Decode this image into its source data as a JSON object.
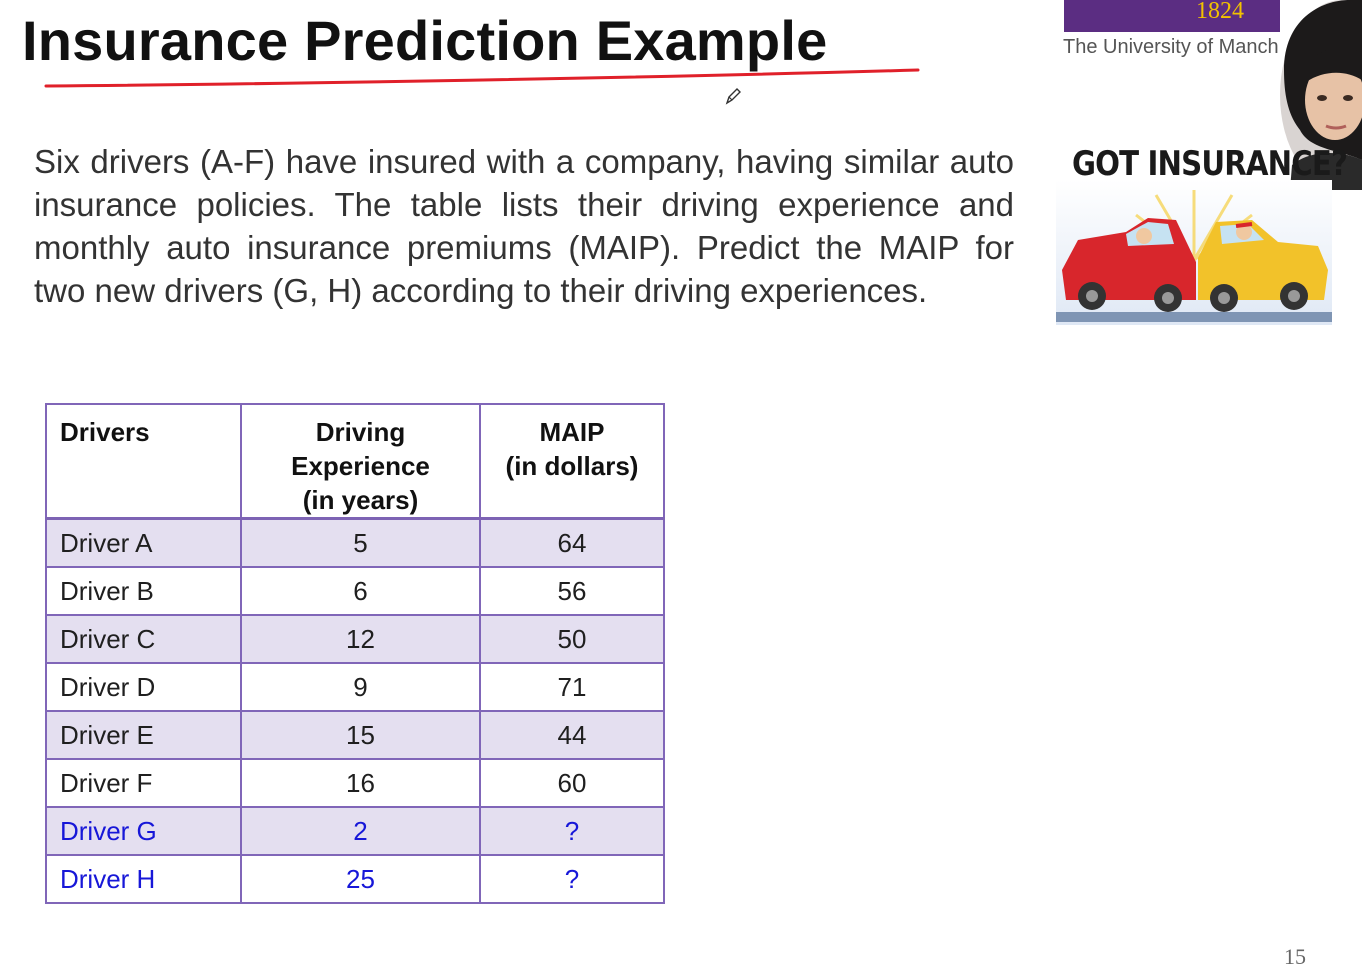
{
  "slide": {
    "title": "Insurance Prediction Example",
    "intro": "Six drivers (A-F) have insured with a company, having similar auto insurance policies. The table lists their driving experience and monthly auto insurance premiums (MAIP). Predict the MAIP for two new drivers (G, H) according to their driving experiences.",
    "page_number": "15"
  },
  "branding": {
    "year": "1824",
    "university": "The University of Manch",
    "bar_color": "#5b2d82",
    "year_color": "#f2c200"
  },
  "image_card": {
    "heading": "GOT INSURANCE?"
  },
  "table": {
    "headers": {
      "col1": "Drivers",
      "col2_line1": "Driving",
      "col2_line2": "Experience",
      "col2_line3": "(in years)",
      "col3_line1": "MAIP",
      "col3_line2": "(in dollars)"
    },
    "rows": [
      {
        "driver": "Driver A",
        "experience": "5",
        "maip": "64"
      },
      {
        "driver": "Driver B",
        "experience": "6",
        "maip": "56"
      },
      {
        "driver": "Driver C",
        "experience": "12",
        "maip": "50"
      },
      {
        "driver": "Driver D",
        "experience": "9",
        "maip": "71"
      },
      {
        "driver": "Driver E",
        "experience": "15",
        "maip": "44"
      },
      {
        "driver": "Driver F",
        "experience": "16",
        "maip": "60"
      },
      {
        "driver": "Driver G",
        "experience": "2",
        "maip": "?"
      },
      {
        "driver": "Driver H",
        "experience": "25",
        "maip": "?"
      }
    ],
    "header_border_color": "#8066b8",
    "shade_color": "#e4dff0",
    "new_driver_color": "#1717d8"
  }
}
